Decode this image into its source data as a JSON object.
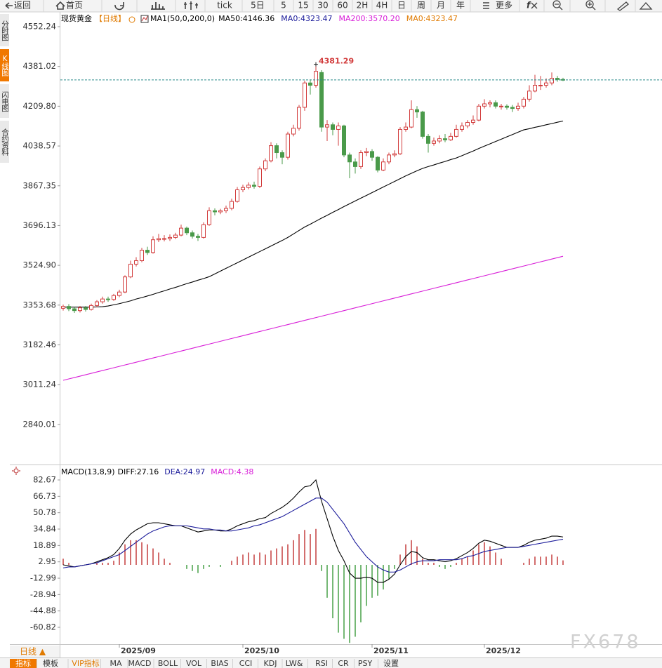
{
  "toolbar": {
    "items": [
      "返回",
      "首页",
      "tick",
      "5日",
      "5",
      "15",
      "30",
      "60",
      "2H",
      "4H",
      "日",
      "周",
      "月",
      "年",
      "更多"
    ]
  },
  "side_tabs": [
    "分时图",
    "K线图",
    "闪电图",
    "合约资料"
  ],
  "bottom_bar": {
    "period": "日线 ▲",
    "tabs": [
      "指标",
      "模板",
      "VIP指标",
      "MA",
      "MACD",
      "BOLL",
      "VOL",
      "BIAS",
      "CCI",
      "KDJ",
      "LW&",
      "RSI",
      "CR",
      "PSY",
      "设置"
    ]
  },
  "watermark": "FX678",
  "chart_data": [
    {
      "type": "candlestick",
      "title": "现货黄金",
      "period": "【日线】",
      "indicator": "MA1(50,0,200,0)",
      "categories": [
        null,
        null,
        null,
        null,
        null,
        null,
        null,
        null,
        null,
        null,
        "2025/09",
        null,
        null,
        null,
        null,
        null,
        null,
        null,
        null,
        null,
        null,
        null,
        null,
        null,
        null,
        null,
        null,
        null,
        null,
        null,
        null,
        null,
        "2025/10",
        null,
        null,
        null,
        null,
        null,
        null,
        null,
        null,
        null,
        null,
        null,
        null,
        null,
        null,
        null,
        null,
        null,
        null,
        null,
        null,
        null,
        null,
        "2025/11",
        null,
        null,
        null,
        null,
        null,
        null,
        null,
        null,
        null,
        null,
        null,
        null,
        null,
        null,
        null,
        null,
        null,
        null,
        null,
        "2025/12",
        null,
        null,
        null,
        null,
        null,
        null,
        null,
        null,
        null,
        null,
        null,
        null,
        null,
        null
      ],
      "open": [
        3340,
        3348,
        3338,
        3330,
        3342,
        3335,
        3352,
        3368,
        3380,
        3378,
        3395,
        3410,
        3475,
        3530,
        3545,
        3590,
        3580,
        3635,
        3640,
        3640,
        3645,
        3655,
        3685,
        3665,
        3650,
        3645,
        3700,
        3760,
        3755,
        3760,
        3770,
        3800,
        3850,
        3860,
        3870,
        3865,
        3940,
        3975,
        4040,
        4010,
        3990,
        4090,
        4115,
        4205,
        4310,
        4300,
        4355,
        4120,
        4130,
        4110,
        4125,
        4000,
        3970,
        3950,
        4010,
        4015,
        3990,
        3935,
        3970,
        4000,
        4005,
        4110,
        4120,
        4195,
        4185,
        4080,
        4050,
        4060,
        4070,
        4065,
        4080,
        4110,
        4125,
        4140,
        4150,
        4210,
        4220,
        4225,
        4210,
        4210,
        4205,
        4200,
        4210,
        4240,
        4275,
        4300,
        4300,
        4310,
        4330,
        4325
      ],
      "high": [
        3356,
        3358,
        3345,
        3350,
        3350,
        3360,
        3375,
        3390,
        3390,
        3402,
        3420,
        3482,
        3545,
        3560,
        3600,
        3605,
        3650,
        3660,
        3655,
        3658,
        3665,
        3700,
        3692,
        3675,
        3660,
        3710,
        3775,
        3770,
        3768,
        3782,
        3812,
        3862,
        3872,
        3882,
        3885,
        3950,
        3985,
        4055,
        4050,
        4020,
        4100,
        4130,
        4215,
        4320,
        4325,
        4381.29,
        4365,
        4150,
        4140,
        4140,
        4130,
        4010,
        3985,
        4020,
        4030,
        4025,
        3995,
        3985,
        4010,
        4020,
        4120,
        4140,
        4235,
        4210,
        4190,
        4090,
        4075,
        4085,
        4090,
        4095,
        4130,
        4140,
        4150,
        4170,
        4220,
        4240,
        4235,
        4235,
        4220,
        4218,
        4215,
        4225,
        4250,
        4300,
        4345,
        4340,
        4330,
        4355,
        4340,
        4332
      ],
      "low": [
        3330,
        3328,
        3320,
        3322,
        3326,
        3330,
        3345,
        3360,
        3368,
        3372,
        3388,
        3405,
        3470,
        3520,
        3538,
        3570,
        3575,
        3625,
        3628,
        3630,
        3638,
        3650,
        3655,
        3640,
        3630,
        3640,
        3695,
        3740,
        3745,
        3750,
        3762,
        3795,
        3840,
        3852,
        3855,
        3858,
        3930,
        3968,
        3985,
        3960,
        3980,
        4080,
        4105,
        4190,
        4260,
        4290,
        4100,
        4060,
        4085,
        4040,
        3990,
        3900,
        3920,
        3940,
        3995,
        3975,
        3925,
        3930,
        3960,
        3990,
        4000,
        4100,
        4115,
        4160,
        4070,
        4010,
        4040,
        4050,
        4055,
        4060,
        4075,
        4100,
        4115,
        4130,
        4145,
        4200,
        4205,
        4200,
        4195,
        4195,
        4185,
        4190,
        4200,
        4230,
        4270,
        4280,
        4290,
        4300,
        4315,
        4318
      ],
      "close": [
        3348,
        3338,
        3330,
        3342,
        3335,
        3352,
        3368,
        3380,
        3378,
        3395,
        3410,
        3475,
        3530,
        3545,
        3590,
        3580,
        3635,
        3640,
        3640,
        3645,
        3655,
        3685,
        3665,
        3650,
        3645,
        3700,
        3760,
        3755,
        3760,
        3770,
        3800,
        3850,
        3860,
        3870,
        3865,
        3940,
        3975,
        4040,
        4010,
        3990,
        4090,
        4115,
        4205,
        4310,
        4300,
        4360,
        4120,
        4130,
        4110,
        4125,
        4000,
        3970,
        3950,
        4010,
        4015,
        3990,
        3935,
        3970,
        4000,
        4005,
        4110,
        4120,
        4195,
        4185,
        4080,
        4050,
        4060,
        4070,
        4065,
        4080,
        4110,
        4125,
        4140,
        4150,
        4210,
        4220,
        4225,
        4210,
        4210,
        4205,
        4200,
        4210,
        4240,
        4275,
        4300,
        4300,
        4310,
        4330,
        4325,
        4323
      ],
      "up_color": "#d23c3c",
      "down_color": "#4a9a4a",
      "price_line_color": "#2a8a8a",
      "lines": [
        {
          "name": "MA50:4146.36",
          "color": "#000000",
          "values": [
            3345,
            3345,
            3345,
            3345,
            3345,
            3345,
            3346,
            3347,
            3350,
            3355,
            3360,
            3366,
            3372,
            3380,
            3386,
            3393,
            3400,
            3408,
            3415,
            3423,
            3430,
            3438,
            3446,
            3453,
            3461,
            3468,
            3476,
            3488,
            3500,
            3512,
            3524,
            3536,
            3548,
            3560,
            3572,
            3584,
            3596,
            3608,
            3620,
            3632,
            3645,
            3660,
            3675,
            3690,
            3702,
            3715,
            3728,
            3740,
            3753,
            3765,
            3778,
            3790,
            3802,
            3814,
            3826,
            3838,
            3850,
            3862,
            3874,
            3886,
            3898,
            3910,
            3921,
            3932,
            3942,
            3950,
            3957,
            3965,
            3972,
            3980,
            3987,
            3997,
            4007,
            4017,
            4028,
            4038,
            4048,
            4058,
            4068,
            4078,
            4088,
            4098,
            4108,
            4113,
            4119,
            4124,
            4130,
            4135,
            4141,
            4146
          ]
        },
        {
          "name": "MA200:3570.20",
          "color": "#d81ed8",
          "values": [
            3030,
            3036,
            3042,
            3048,
            3054,
            3060,
            3066,
            3072,
            3078,
            3084,
            3090,
            3096,
            3102,
            3108,
            3114,
            3120,
            3126,
            3132,
            3138,
            3144,
            3150,
            3156,
            3162,
            3168,
            3174,
            3180,
            3186,
            3192,
            3198,
            3204,
            3210,
            3216,
            3222,
            3228,
            3234,
            3240,
            3246,
            3252,
            3258,
            3264,
            3270,
            3276,
            3282,
            3288,
            3294,
            3300,
            3306,
            3312,
            3318,
            3324,
            3330,
            3336,
            3342,
            3348,
            3354,
            3360,
            3366,
            3372,
            3378,
            3384,
            3390,
            3396,
            3402,
            3408,
            3414,
            3420,
            3426,
            3432,
            3438,
            3444,
            3450,
            3456,
            3462,
            3468,
            3474,
            3480,
            3486,
            3492,
            3498,
            3504,
            3510,
            3516,
            3522,
            3528,
            3534,
            3540,
            3546,
            3552,
            3558,
            3564
          ]
        }
      ],
      "legend_extra": [
        {
          "text": "MA0:4323.47",
          "color": "#1a1a9a"
        },
        {
          "text": "MA0:4323.47",
          "color": "#e07a00"
        }
      ],
      "ylim": [
        2673.6,
        4606.6
      ],
      "yticks": [
        4552.24,
        4381.02,
        {
          "value": 4209.8,
          "label": "4209.80"
        },
        4038.57,
        3867.35,
        3696.13,
        {
          "value": 3524.9,
          "label": "3524.90"
        },
        3353.68,
        3182.46,
        3011.24,
        2840.01
      ],
      "grid": false
    },
    {
      "type": "macd",
      "title": "MACD(13,8,9)",
      "up_color": "#c03030",
      "down_color": "#3a9a3a",
      "series": [
        {
          "name": "DIFF:27.16",
          "color": "#000000",
          "values": [
            0,
            -1,
            -2,
            -1,
            0,
            1,
            3,
            5,
            7,
            10,
            16,
            24,
            30,
            34,
            37,
            40,
            41,
            41,
            40,
            39,
            38,
            38,
            36,
            34,
            32,
            33,
            34,
            34,
            33,
            33,
            35,
            38,
            40,
            42,
            43,
            45,
            46,
            50,
            53,
            56,
            60,
            65,
            71,
            76,
            77,
            82.67,
            62,
            45,
            28,
            14,
            4,
            -8,
            -13,
            -13,
            -12,
            -13,
            -17,
            -17,
            -14,
            -9,
            0,
            8,
            13,
            12,
            7,
            5,
            5,
            4,
            3,
            4,
            6,
            9,
            12,
            16,
            21,
            24,
            23,
            21,
            19,
            17,
            17,
            17,
            19,
            22,
            24,
            25,
            26,
            28,
            28,
            27.16
          ]
        },
        {
          "name": "DEA:24.97",
          "color": "#1a1a9a",
          "values": [
            -3,
            -2,
            -2,
            -1,
            0,
            1,
            2,
            4,
            6,
            8,
            10,
            14,
            18,
            22,
            26,
            30,
            33,
            35,
            37,
            38,
            38,
            38,
            38,
            37,
            36,
            35,
            35,
            34,
            34,
            33,
            33,
            34,
            35,
            36,
            38,
            39,
            41,
            43,
            45,
            47,
            50,
            53,
            56,
            59,
            62,
            65,
            65,
            61,
            54,
            47,
            40,
            31,
            22,
            15,
            8,
            3,
            -2,
            -5,
            -7,
            -7,
            -5,
            -2,
            1,
            3,
            4,
            4,
            4,
            5,
            5,
            5,
            5,
            6,
            8,
            9,
            11,
            13,
            14,
            15,
            16,
            17,
            17,
            17,
            18,
            19,
            20,
            21,
            22,
            23,
            24,
            24.97
          ]
        },
        {
          "name": "MACD:4.38",
          "color": "#d81ed8",
          "values": [
            6,
            2,
            0,
            0,
            0,
            0,
            2,
            2,
            2,
            4,
            12,
            20,
            24,
            24,
            22,
            20,
            16,
            12,
            6,
            2,
            0,
            0,
            -4,
            -6,
            -8,
            -4,
            -2,
            0,
            -2,
            0,
            4,
            8,
            10,
            12,
            10,
            12,
            10,
            14,
            16,
            18,
            20,
            24,
            30,
            34,
            30,
            35,
            -6,
            -32,
            -52,
            -66,
            -72,
            -76,
            -70,
            -56,
            -40,
            -32,
            -30,
            -24,
            -14,
            -4,
            10,
            20,
            24,
            18,
            6,
            2,
            2,
            -2,
            -4,
            -2,
            2,
            6,
            8,
            14,
            20,
            22,
            18,
            12,
            6,
            0,
            0,
            0,
            2,
            6,
            8,
            8,
            8,
            10,
            8,
            4.38
          ]
        }
      ],
      "ylim": [
        -77.2,
        93.6
      ],
      "yticks": [
        82.67,
        66.73,
        50.78,
        34.84,
        18.89,
        2.95,
        -12.99,
        -28.94,
        -44.88,
        -60.82
      ],
      "grid": false
    }
  ]
}
